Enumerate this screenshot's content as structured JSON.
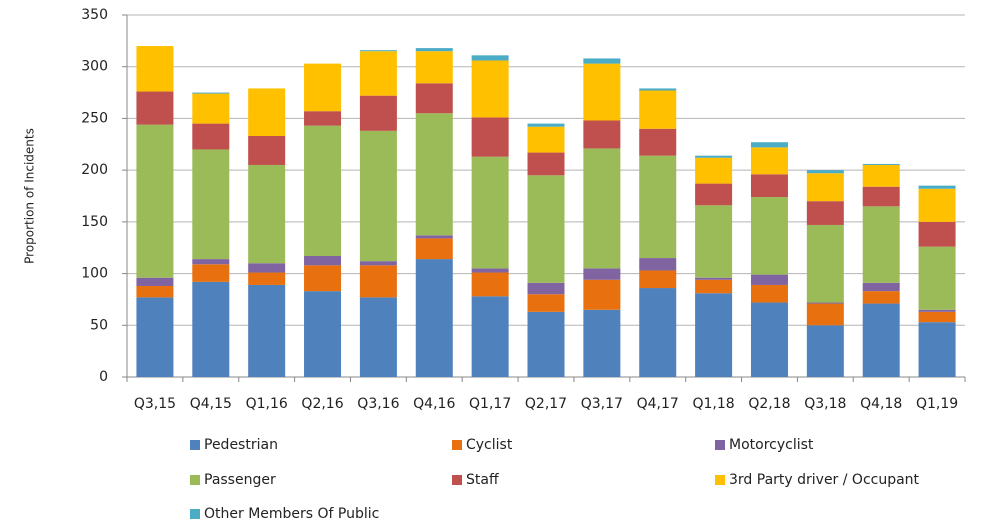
{
  "chart_data": {
    "type": "stacked_bar",
    "y_label": "Proportion of Incidents",
    "categories": [
      "Q3,15",
      "Q4,15",
      "Q1,16",
      "Q2,16",
      "Q3,16",
      "Q4,16",
      "Q1,17",
      "Q2,17",
      "Q3,17",
      "Q4,17",
      "Q1,18",
      "Q2,18",
      "Q3,18",
      "Q4,18",
      "Q1,19"
    ],
    "series": [
      {
        "name": "Pedestrian",
        "color": "#4f81bd",
        "values": [
          77,
          92,
          89,
          83,
          77,
          114,
          78,
          63,
          65,
          86,
          81,
          72,
          50,
          71,
          53
        ]
      },
      {
        "name": "Cyclist",
        "color": "#e8700f",
        "values": [
          11,
          17,
          12,
          25,
          31,
          20,
          23,
          17,
          29,
          17,
          13,
          17,
          21,
          12,
          10
        ]
      },
      {
        "name": "Motorcyclist",
        "color": "#8064a2",
        "values": [
          8,
          5,
          9,
          9,
          4,
          3,
          4,
          11,
          11,
          12,
          2,
          10,
          1,
          8,
          2
        ]
      },
      {
        "name": "Passenger",
        "color": "#9bbb59",
        "values": [
          148,
          106,
          95,
          126,
          126,
          118,
          108,
          104,
          116,
          99,
          70,
          75,
          75,
          74,
          61
        ]
      },
      {
        "name": "Staff",
        "color": "#c0504d",
        "values": [
          32,
          25,
          28,
          14,
          34,
          29,
          38,
          22,
          27,
          26,
          21,
          22,
          23,
          19,
          24
        ]
      },
      {
        "name": "3rd Party driver / Occupant",
        "color": "#ffc000",
        "values": [
          44,
          29,
          46,
          46,
          43,
          31,
          55,
          25,
          55,
          37,
          25,
          26,
          27,
          21,
          32
        ]
      },
      {
        "name": "Other Members Of Public",
        "color": "#4bacc6",
        "values": [
          0,
          1,
          0,
          0,
          1,
          3,
          5,
          3,
          5,
          2,
          2,
          5,
          3,
          1,
          3
        ]
      }
    ],
    "ylim": [
      0,
      350
    ],
    "yticks": [
      0,
      50,
      100,
      150,
      200,
      250,
      300,
      350
    ],
    "grid": true
  }
}
